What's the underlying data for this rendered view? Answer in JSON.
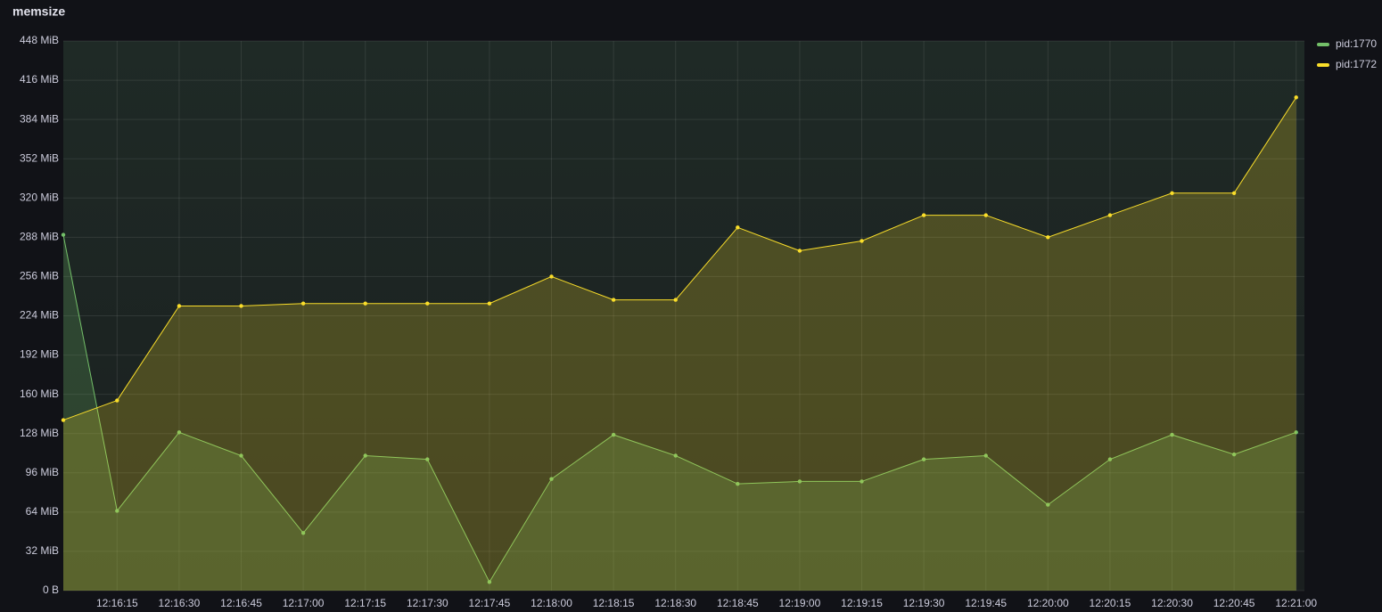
{
  "chart_data": {
    "type": "line",
    "title": "memsize",
    "x": [
      "12:16:02",
      "12:16:15",
      "12:16:30",
      "12:16:45",
      "12:17:00",
      "12:17:15",
      "12:17:30",
      "12:17:45",
      "12:18:00",
      "12:18:15",
      "12:18:30",
      "12:18:45",
      "12:19:00",
      "12:19:15",
      "12:19:30",
      "12:19:45",
      "12:20:00",
      "12:20:15",
      "12:20:30",
      "12:20:45",
      "12:21:00"
    ],
    "xlim": [
      "12:16:02",
      "12:21:02"
    ],
    "xticks": [
      "12:16:15",
      "12:16:30",
      "12:16:45",
      "12:17:00",
      "12:17:15",
      "12:17:30",
      "12:17:45",
      "12:18:00",
      "12:18:15",
      "12:18:30",
      "12:18:45",
      "12:19:00",
      "12:19:15",
      "12:19:30",
      "12:19:45",
      "12:20:00",
      "12:20:15",
      "12:20:30",
      "12:20:45",
      "12:21:00"
    ],
    "ylim": [
      0,
      448
    ],
    "yticks": [
      {
        "value": 0,
        "label": "0 B"
      },
      {
        "value": 32,
        "label": "32 MiB"
      },
      {
        "value": 64,
        "label": "64 MiB"
      },
      {
        "value": 96,
        "label": "96 MiB"
      },
      {
        "value": 128,
        "label": "128 MiB"
      },
      {
        "value": 160,
        "label": "160 MiB"
      },
      {
        "value": 192,
        "label": "192 MiB"
      },
      {
        "value": 224,
        "label": "224 MiB"
      },
      {
        "value": 256,
        "label": "256 MiB"
      },
      {
        "value": 288,
        "label": "288 MiB"
      },
      {
        "value": 320,
        "label": "320 MiB"
      },
      {
        "value": 352,
        "label": "352 MiB"
      },
      {
        "value": 384,
        "label": "384 MiB"
      },
      {
        "value": 416,
        "label": "416 MiB"
      },
      {
        "value": 448,
        "label": "448 MiB"
      }
    ],
    "grid": true,
    "legend": "right",
    "series": [
      {
        "name": "pid:1770",
        "color": "#73bf69",
        "values": [
          290,
          65,
          129,
          110,
          47,
          110,
          107,
          7,
          91,
          127,
          110,
          87,
          89,
          89,
          107,
          110,
          70,
          107,
          127,
          111,
          129
        ]
      },
      {
        "name": "pid:1772",
        "color": "#fade2a",
        "values": [
          139,
          155,
          232,
          232,
          234,
          234,
          234,
          234,
          256,
          237,
          237,
          296,
          277,
          285,
          306,
          306,
          288,
          306,
          324,
          324,
          402
        ]
      }
    ]
  }
}
